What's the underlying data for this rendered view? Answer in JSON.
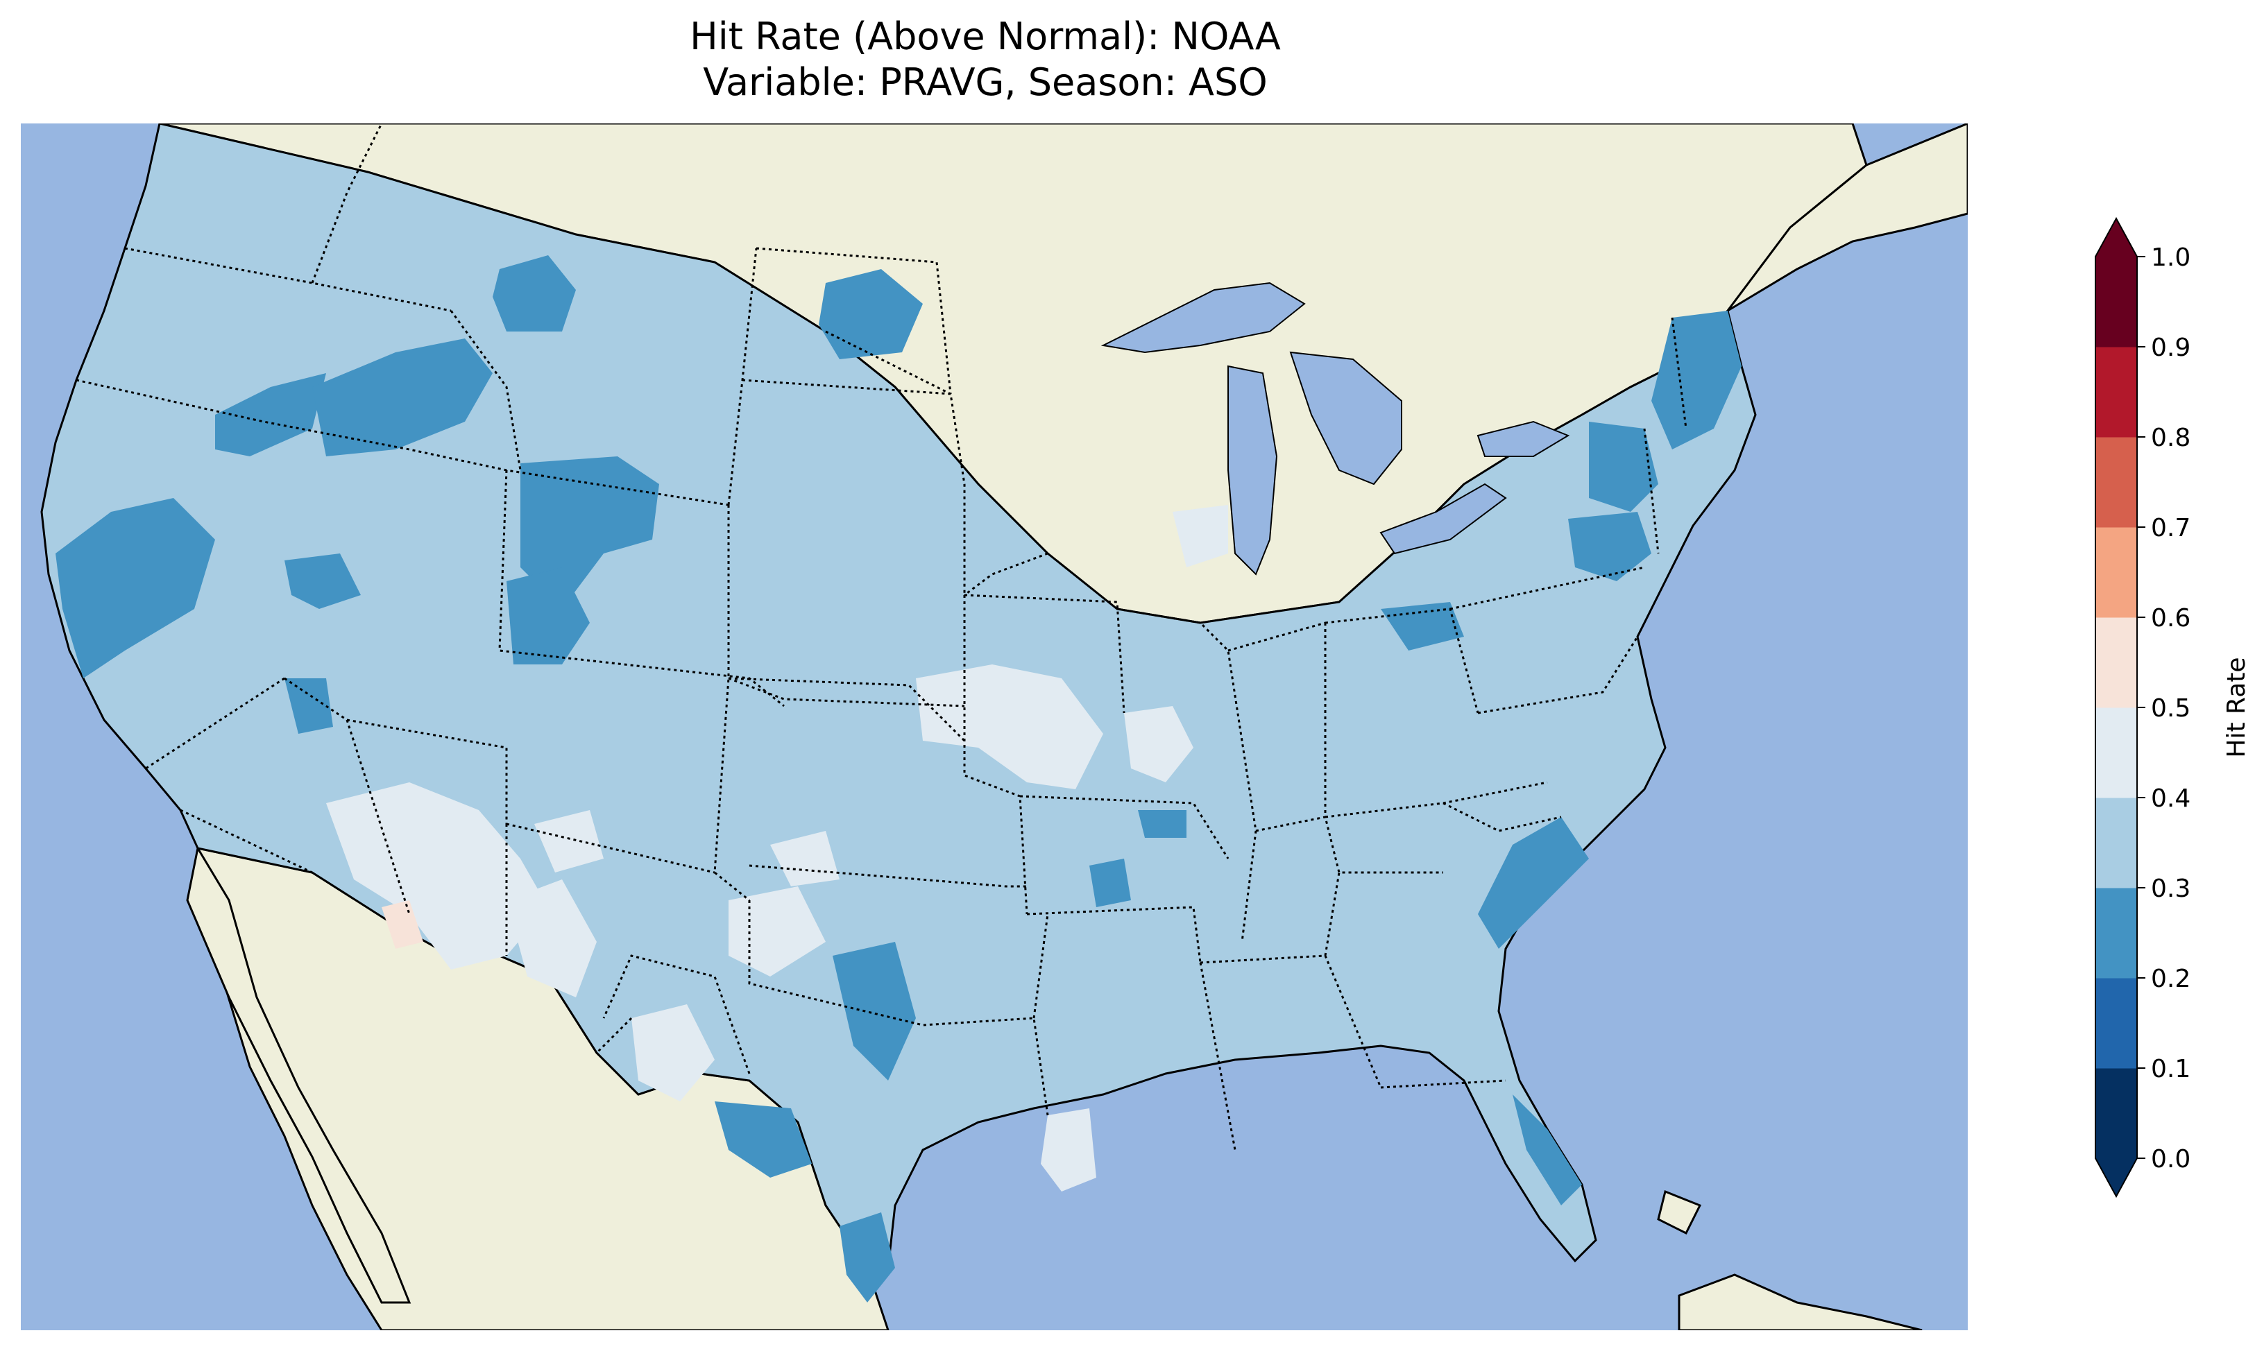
{
  "title": {
    "line1": "Hit Rate (Above Normal): NOAA",
    "line2": "Variable: PRAVG, Season: ASO"
  },
  "colors": {
    "ocean": "#97b6e1",
    "land": "#efefdb",
    "border": "#000000"
  },
  "colorbar": {
    "label": "Hit Rate",
    "ticks": [
      "0.0",
      "0.1",
      "0.2",
      "0.3",
      "0.4",
      "0.5",
      "0.6",
      "0.7",
      "0.8",
      "0.9",
      "1.0"
    ],
    "bins": [
      {
        "range": [
          0.0,
          0.1
        ],
        "color": "#053061"
      },
      {
        "range": [
          0.1,
          0.2
        ],
        "color": "#2166ac"
      },
      {
        "range": [
          0.2,
          0.3
        ],
        "color": "#4393c3"
      },
      {
        "range": [
          0.3,
          0.4
        ],
        "color": "#a9cde3"
      },
      {
        "range": [
          0.4,
          0.5
        ],
        "color": "#e2ebf2"
      },
      {
        "range": [
          0.5,
          0.6
        ],
        "color": "#f7e3d9"
      },
      {
        "range": [
          0.6,
          0.7
        ],
        "color": "#f4a582"
      },
      {
        "range": [
          0.7,
          0.8
        ],
        "color": "#d6604d"
      },
      {
        "range": [
          0.8,
          0.9
        ],
        "color": "#b2182b"
      },
      {
        "range": [
          0.9,
          1.0
        ],
        "color": "#67001f"
      }
    ],
    "under_color": "#053061",
    "over_color": "#67001f"
  },
  "map": {
    "extent_lon": [
      -125,
      -66
    ],
    "extent_lat": [
      24,
      50
    ],
    "dominant_value_bin": "0.3-0.4",
    "regions": [
      {
        "name": "Pacific Northwest coast",
        "bin": "0.2-0.3"
      },
      {
        "name": "Idaho / western Montana",
        "bin": "0.2-0.3"
      },
      {
        "name": "northern Rockies Wyoming",
        "bin": "0.2-0.3"
      },
      {
        "name": "North Dakota",
        "bin": "0.2-0.3"
      },
      {
        "name": "Southwest (Arizona / New Mexico)",
        "bin": "0.4-0.5"
      },
      {
        "name": "southwest Arizona",
        "bin": "0.5-0.6"
      },
      {
        "name": "Kansas / Iowa",
        "bin": "0.4-0.5"
      },
      {
        "name": "southern Texas coast",
        "bin": "0.2-0.3"
      },
      {
        "name": "New England",
        "bin": "0.2-0.3"
      },
      {
        "name": "Carolinas coast",
        "bin": "0.2-0.3"
      },
      {
        "name": "Florida peninsula",
        "bin": "0.2-0.3"
      }
    ]
  }
}
